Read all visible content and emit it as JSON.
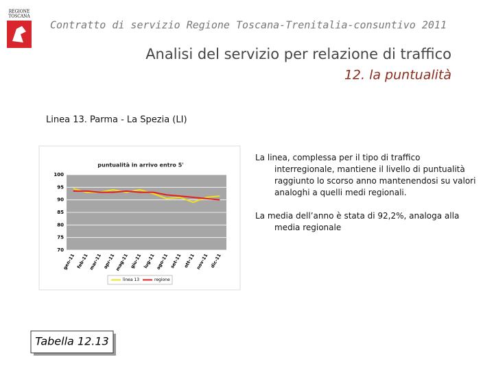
{
  "logo": {
    "lines": [
      "REGIONE",
      "TOSCANA"
    ]
  },
  "header": {
    "caption": "Contratto di servizio Regione Toscana-Trenitalia-consuntivo 2011",
    "title": "Analisi del servizio per relazione di traffico",
    "subtitle": "12. la puntualità"
  },
  "section": "Linea 13. Parma - La Spezia (LI)",
  "notes": [
    "La linea, complessa per il tipo di traffico interregionale, mantiene il livello di puntualità raggiunto lo scorso anno mantenendosi su valori analoghi a quelli medi regionali.",
    "La media dell’anno è stata di 92,2%, analoga alla media regionale"
  ],
  "table_label": "Tabella 12.13",
  "chart_data": {
    "type": "line",
    "title": "puntualità in arrivo entro 5'",
    "categories": [
      "gen-11",
      "feb-11",
      "mar-11",
      "apr-11",
      "mag-11",
      "giu-11",
      "lug-11",
      "ago-11",
      "set-11",
      "ott-11",
      "nov-11",
      "dic-11"
    ],
    "series": [
      {
        "name": "linea 13",
        "color": "#f0e020",
        "values": [
          94.5,
          93,
          93,
          94,
          93,
          94,
          92.5,
          90.5,
          91,
          89,
          91,
          91.5
        ]
      },
      {
        "name": "regione",
        "color": "#e02020",
        "values": [
          93.5,
          93.5,
          93,
          93,
          93.5,
          93,
          93,
          92,
          91.5,
          91,
          90.5,
          90
        ]
      }
    ],
    "ylim": [
      70,
      100
    ],
    "yticks": [
      70,
      75,
      80,
      85,
      90,
      95,
      100
    ],
    "grid": true
  }
}
